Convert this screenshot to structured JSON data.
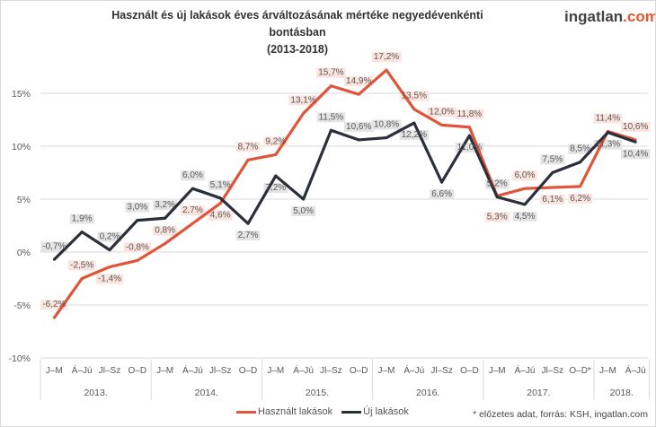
{
  "chart_data": {
    "type": "line",
    "title": "Használt és új lakások éves árváltozásának mértéke negyedévenkénti bontásban",
    "subtitle": "(2013-2018)",
    "quarters": [
      "J–M",
      "Á–Jú",
      "Jl–Sz",
      "O–D",
      "J–M",
      "Á–Jú",
      "Jl–Sz",
      "O–D",
      "J–M",
      "Á–Jú",
      "Jl–Sz",
      "O–D",
      "J–M",
      "Á–Jú",
      "Jl–Sz",
      "O–D",
      "J–M",
      "Á–Jú",
      "Jl–Sz",
      "O–D*",
      "J–M",
      "Á–Jú"
    ],
    "years": [
      {
        "label": "2013.",
        "count": 4
      },
      {
        "label": "2014.",
        "count": 4
      },
      {
        "label": "2015.",
        "count": 4
      },
      {
        "label": "2016.",
        "count": 4
      },
      {
        "label": "2017.",
        "count": 4
      },
      {
        "label": "2018.",
        "count": 2
      }
    ],
    "series": [
      {
        "name": "Használt lakások",
        "color": "#e0553a",
        "label_bg": "#fbe4de",
        "values": [
          -6.2,
          -2.5,
          -1.4,
          -0.8,
          0.8,
          2.7,
          4.6,
          8.7,
          9.2,
          13.1,
          15.7,
          14.9,
          17.2,
          13.5,
          12.0,
          11.8,
          5.3,
          6.0,
          6.1,
          6.2,
          11.4,
          10.6
        ]
      },
      {
        "name": "Új lakások",
        "color": "#2b2f3a",
        "label_bg": "#e4e4e4",
        "values": [
          -0.7,
          1.9,
          0.2,
          3.0,
          3.2,
          6.0,
          5.1,
          2.7,
          7.2,
          5.0,
          11.5,
          10.6,
          10.8,
          12.2,
          6.6,
          11.0,
          5.2,
          4.5,
          7.5,
          8.5,
          11.3,
          10.4
        ]
      }
    ],
    "y_ticks": [
      15,
      10,
      5,
      0,
      -5,
      -10
    ],
    "ylim": [
      -10,
      15
    ],
    "grid": true,
    "legend": "bottom"
  },
  "logo": {
    "name": "ingatlan",
    "domain": ".com"
  },
  "footnote": "* előzetes adat, forrás: KSH, ingatlan.com"
}
